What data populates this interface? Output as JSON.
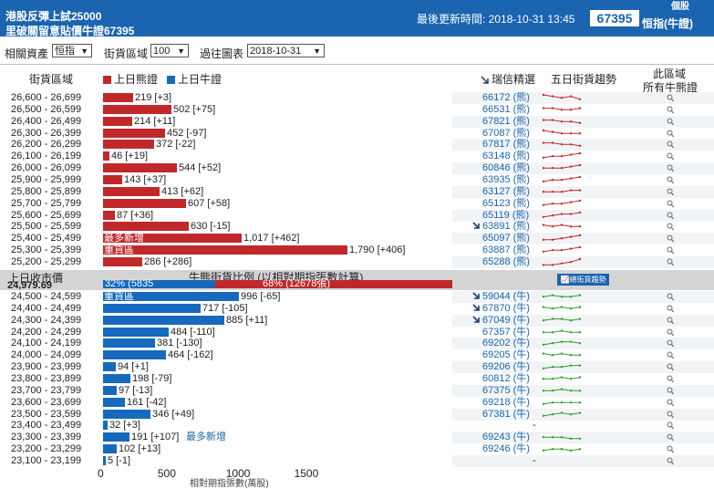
{
  "header": {
    "title_line1": "港股反彈上試25000",
    "title_line2": "里破關留意貼價牛證67395",
    "last_update": "最後更新時間: 2018-10-31 13:45",
    "code": "67395",
    "type": "恒指(牛證)",
    "corner_tag": "個股"
  },
  "filters": {
    "asset_label": "相關資產",
    "asset_value": "恒指",
    "range_label": "街貨區域",
    "range_value": "100",
    "date_label": "過往圖表",
    "date_value": "2018-10-31"
  },
  "columns": {
    "range": "街貨區域",
    "bear_legend": "上日熊證",
    "bull_legend": "上日牛證",
    "ruixin": "瑞信精選",
    "trend": "五日街貨趨勢",
    "all_line1": "此區域",
    "all_line2": "所有牛熊證"
  },
  "colors": {
    "bear": "#c0282a",
    "bull": "#1669bd",
    "header_bg": "#1a64b0",
    "spark": "#c8282a",
    "spark_bull": "#2ea02e"
  },
  "chart_data": {
    "type": "bar",
    "x_max_ticks": [
      0,
      500,
      1000,
      1500
    ],
    "bear_rows": [
      {
        "range": "26,600 - 26,699",
        "value": 219,
        "label": "219 [+3]",
        "code": "66172 (熊)",
        "trend": [
          5,
          4,
          3,
          4,
          2
        ]
      },
      {
        "range": "26,500 - 26,599",
        "value": 502,
        "label": "502 [+75]",
        "code": "66531 (熊)",
        "trend": [
          4,
          4,
          3,
          3,
          4
        ]
      },
      {
        "range": "26,400 - 26,499",
        "value": 214,
        "label": "214 [+11]",
        "code": "67821 (熊)",
        "trend": [
          4,
          4,
          3,
          3,
          2
        ]
      },
      {
        "range": "26,300 - 26,399",
        "value": 452,
        "label": "452 [-97]",
        "code": "67087 (熊)",
        "trend": [
          5,
          4,
          3,
          3,
          3
        ]
      },
      {
        "range": "26,200 - 26,299",
        "value": 372,
        "label": "372 [-22]",
        "code": "67817 (熊)",
        "trend": [
          4,
          4,
          3,
          3,
          2
        ]
      },
      {
        "range": "26,100 - 26,199",
        "value": 46,
        "label": "46 [+19]",
        "code": "63148 (熊)",
        "trend": [
          2,
          3,
          3,
          4,
          5
        ]
      },
      {
        "range": "26,000 - 26,099",
        "value": 544,
        "label": "544 [+52]",
        "code": "60846 (熊)",
        "trend": [
          3,
          3,
          3,
          4,
          5
        ]
      },
      {
        "range": "25,900 - 25,999",
        "value": 143,
        "label": "143 [+37]",
        "code": "63935 (熊)",
        "trend": [
          2,
          3,
          3,
          4,
          5
        ]
      },
      {
        "range": "25,800 - 25,899",
        "value": 413,
        "label": "413 [+62]",
        "code": "63127 (熊)",
        "trend": [
          3,
          3,
          3,
          4,
          4
        ]
      },
      {
        "range": "25,700 - 25,799",
        "value": 607,
        "label": "607 [+58]",
        "code": "65123 (熊)",
        "trend": [
          2,
          3,
          3,
          4,
          5
        ]
      },
      {
        "range": "25,600 - 25,699",
        "value": 87,
        "label": "87 [+36]",
        "code": "65119 (熊)",
        "trend": [
          2,
          3,
          4,
          4,
          5
        ]
      },
      {
        "range": "25,500 - 25,599",
        "value": 630,
        "label": "630 [-15]",
        "code": "63891 (熊)",
        "trend": [
          4,
          3,
          4,
          3,
          3
        ],
        "arrow": true
      },
      {
        "range": "25,400 - 25,499",
        "value": 1017,
        "label": "1,017 [+462]",
        "code": "65097 (熊)",
        "trend": [
          2,
          2,
          3,
          4,
          5
        ],
        "inside": "最多新增"
      },
      {
        "range": "25,300 - 25,399",
        "value": 1790,
        "label": "1,790 [+406]",
        "code": "63887 (熊)",
        "trend": [
          2,
          3,
          3,
          4,
          5
        ],
        "inside": "重貨區"
      },
      {
        "range": "25,200 - 25,299",
        "value": 286,
        "label": "286 [+286]",
        "code": "65288 (熊)",
        "trend": [
          1,
          1,
          2,
          3,
          5
        ]
      }
    ],
    "band": {
      "close_label": "上日收市價",
      "close_value": "24,979.69",
      "title": "牛熊街貨比例 (以相對期指張數計算)",
      "bull_pct": 32,
      "bull_text": "32% (5835",
      "bear_pct": 68,
      "bear_text": "68% (12678張)",
      "button": "總街貨趨勢"
    },
    "bull_rows": [
      {
        "range": "24,500 - 24,599",
        "value": 996,
        "label": "996 [-65]",
        "code": "59044 (牛)",
        "trend": [
          3,
          4,
          3,
          3,
          4
        ],
        "inside": "重貨區",
        "arrow": true
      },
      {
        "range": "24,400 - 24,499",
        "value": 717,
        "label": "717 [-105]",
        "code": "67870 (牛)",
        "trend": [
          4,
          3,
          4,
          3,
          4
        ],
        "arrow": true
      },
      {
        "range": "24,300 - 24,399",
        "value": 885,
        "label": "885 [+11]",
        "code": "67049 (牛)",
        "trend": [
          3,
          4,
          4,
          3,
          4
        ],
        "arrow": true
      },
      {
        "range": "24,200 - 24,299",
        "value": 484,
        "label": "484 [-110]",
        "code": "67357 (牛)",
        "trend": [
          3,
          3,
          4,
          3,
          3
        ]
      },
      {
        "range": "24,100 - 24,199",
        "value": 381,
        "label": "381 [-130]",
        "code": "69202 (牛)",
        "trend": [
          2,
          3,
          4,
          4,
          3
        ]
      },
      {
        "range": "24,000 - 24,099",
        "value": 464,
        "label": "464 [-162]",
        "code": "69205 (牛)",
        "trend": [
          4,
          3,
          4,
          3,
          3
        ]
      },
      {
        "range": "23,900 - 23,999",
        "value": 94,
        "label": "94 [+1]",
        "code": "69206 (牛)",
        "trend": [
          2,
          3,
          3,
          4,
          4
        ]
      },
      {
        "range": "23,800 - 23,899",
        "value": 198,
        "label": "198 [-79]",
        "code": "60812 (牛)",
        "trend": [
          3,
          3,
          4,
          3,
          4
        ]
      },
      {
        "range": "23,700 - 23,799",
        "value": 97,
        "label": "97 [-13]",
        "code": "67375 (牛)",
        "trend": [
          3,
          3,
          4,
          3,
          3
        ]
      },
      {
        "range": "23,600 - 23,699",
        "value": 161,
        "label": "161 [-42]",
        "code": "69218 (牛)",
        "trend": [
          2,
          3,
          3,
          3,
          3
        ]
      },
      {
        "range": "23,500 - 23,599",
        "value": 346,
        "label": "346 [+49]",
        "code": "67381 (牛)",
        "trend": [
          2,
          3,
          4,
          3,
          4
        ]
      },
      {
        "range": "23,400 - 23,499",
        "value": 32,
        "label": "32 [+3]",
        "code": "-",
        "trend": []
      },
      {
        "range": "23,300 - 23,399",
        "value": 191,
        "label": "191 [+107]",
        "code": "69243 (牛)",
        "trend": [
          3,
          3,
          3,
          2,
          2
        ],
        "after": "最多新增"
      },
      {
        "range": "23,200 - 23,299",
        "value": 102,
        "label": "102 [+13]",
        "code": "69246 (牛)",
        "trend": [
          2,
          3,
          3,
          2,
          3
        ]
      },
      {
        "range": "23,100 - 23,199",
        "value": 5,
        "label": "5 [-1]",
        "code": "-",
        "trend": []
      }
    ]
  },
  "xaxis_note": "相對期指張數(萬股)"
}
